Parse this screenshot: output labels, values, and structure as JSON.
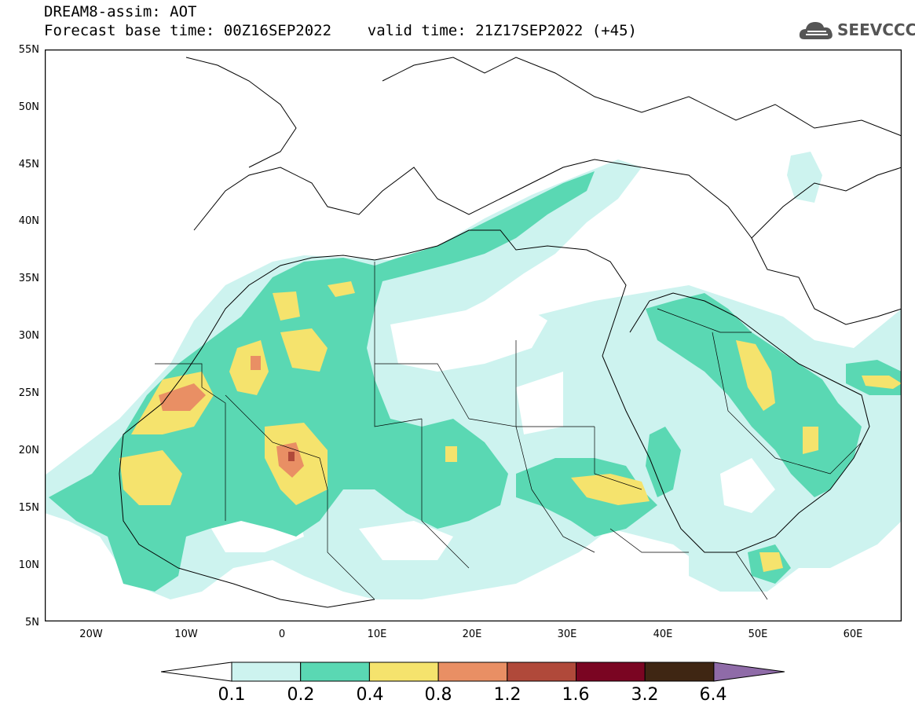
{
  "header": {
    "line1": "DREAM8-assim: AOT",
    "line2": "Forecast base time: 00Z16SEP2022    valid time: 21Z17SEP2022 (+45)"
  },
  "logo": {
    "text": "SEEVCCC",
    "icon": "cloud-logo-icon"
  },
  "map": {
    "lat_labels": [
      "55N",
      "50N",
      "45N",
      "40N",
      "35N",
      "30N",
      "25N",
      "20N",
      "15N",
      "10N",
      "5N"
    ],
    "lon_labels": [
      "20W",
      "10W",
      "0",
      "10E",
      "20E",
      "30E",
      "40E",
      "50E",
      "60E"
    ]
  },
  "colorbar": {
    "colors": [
      "#cdf3ef",
      "#5ad8b3",
      "#f5e36d",
      "#e98f64",
      "#b0493a",
      "#7a0522",
      "#3f2613",
      "#8f6ba8"
    ],
    "under_color": "#ffffff",
    "labels": [
      "0.1",
      "0.2",
      "0.4",
      "0.8",
      "1.2",
      "1.6",
      "3.2",
      "6.4"
    ]
  }
}
